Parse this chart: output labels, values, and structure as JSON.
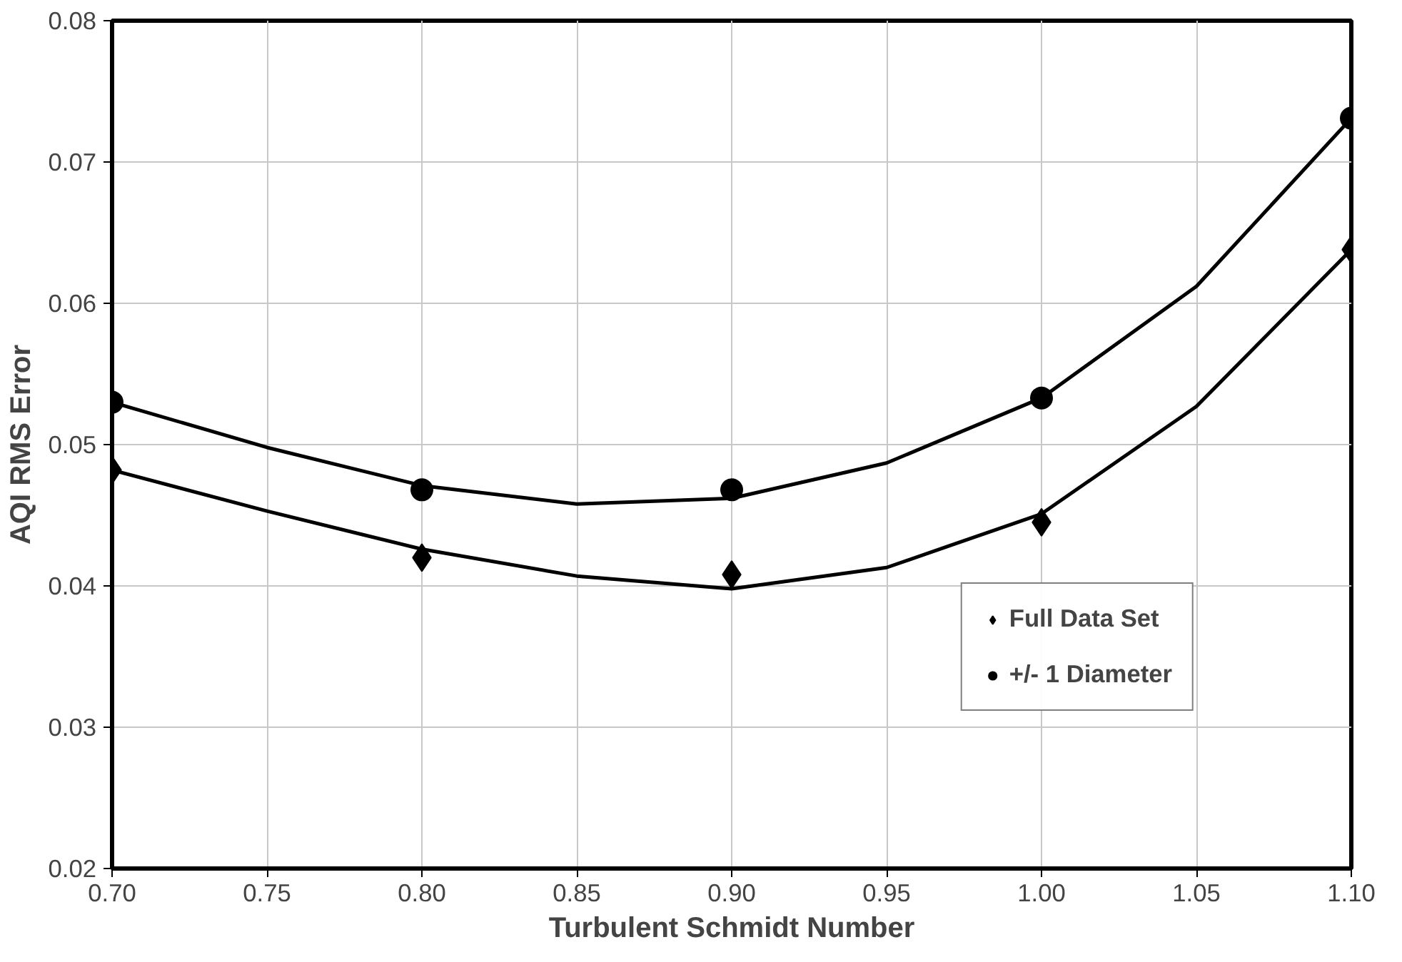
{
  "chart_data": {
    "type": "scatter",
    "xlabel": "Turbulent Schmidt Number",
    "ylabel": "AQI RMS Error",
    "x": [
      0.7,
      0.8,
      0.9,
      1.0,
      1.1
    ],
    "series": [
      {
        "name": "Full Data Set",
        "color": "#000000",
        "marker": "diamond",
        "values": [
          0.0482,
          0.042,
          0.0408,
          0.0445,
          0.0638
        ]
      },
      {
        "name": "+/- 1 Diameter",
        "color": "#000000",
        "marker": "circle",
        "values": [
          0.053,
          0.0468,
          0.0468,
          0.0533,
          0.0731
        ]
      },
      {
        "type": "line",
        "color": "#000000",
        "x": [
          0.7,
          0.75,
          0.8,
          0.85,
          0.9,
          0.95,
          1.0,
          1.05,
          1.1
        ],
        "values": [
          0.0482,
          0.0453,
          0.0426,
          0.0407,
          0.0398,
          0.0413,
          0.0451,
          0.0527,
          0.0638
        ]
      },
      {
        "type": "line",
        "color": "#000000",
        "x": [
          0.7,
          0.75,
          0.8,
          0.85,
          0.9,
          0.95,
          1.0,
          1.05,
          1.1
        ],
        "values": [
          0.053,
          0.0498,
          0.0471,
          0.0458,
          0.0462,
          0.0487,
          0.0533,
          0.0612,
          0.0731
        ]
      }
    ],
    "xlim": [
      0.7,
      1.1
    ],
    "ylim": [
      0.02,
      0.08
    ],
    "xticks": [
      {
        "value": 0.7,
        "label": "0.70"
      },
      {
        "value": 0.75,
        "label": "0.75"
      },
      {
        "value": 0.8,
        "label": "0.80"
      },
      {
        "value": 0.85,
        "label": "0.85"
      },
      {
        "value": 0.9,
        "label": "0.90"
      },
      {
        "value": 0.95,
        "label": "0.95"
      },
      {
        "value": 1.0,
        "label": "1.00"
      },
      {
        "value": 1.05,
        "label": "1.05"
      },
      {
        "value": 1.1,
        "label": "1.10"
      }
    ],
    "yticks": [
      0.02,
      0.03,
      0.04,
      0.05,
      0.06,
      0.07,
      0.08
    ],
    "grid": true,
    "legend": "bottom right"
  }
}
